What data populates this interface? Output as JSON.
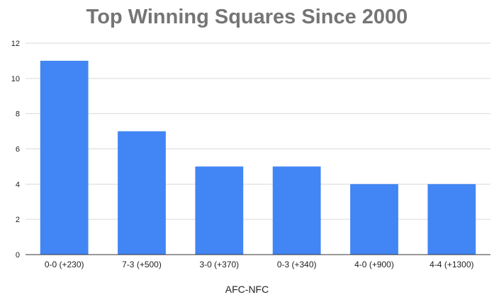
{
  "chart_data": {
    "type": "bar",
    "title": "Top Winning Squares Since 2000",
    "xlabel": "AFC-NFC",
    "ylabel": "",
    "categories": [
      "0-0 (+230)",
      "7-3 (+500)",
      "3-0 (+370)",
      "0-3 (+340)",
      "4-0 (+900)",
      "4-4 (+1300)"
    ],
    "values": [
      11,
      7,
      5,
      5,
      4,
      4
    ],
    "ylim": [
      0,
      12
    ],
    "yticks": [
      "0",
      "2",
      "4",
      "6",
      "8",
      "10",
      "12"
    ],
    "grid": true,
    "legend": "none",
    "colors": {
      "bar": "#4285f4",
      "grid": "#d9d9d9",
      "axis": "#333333",
      "title": "#757575"
    }
  }
}
